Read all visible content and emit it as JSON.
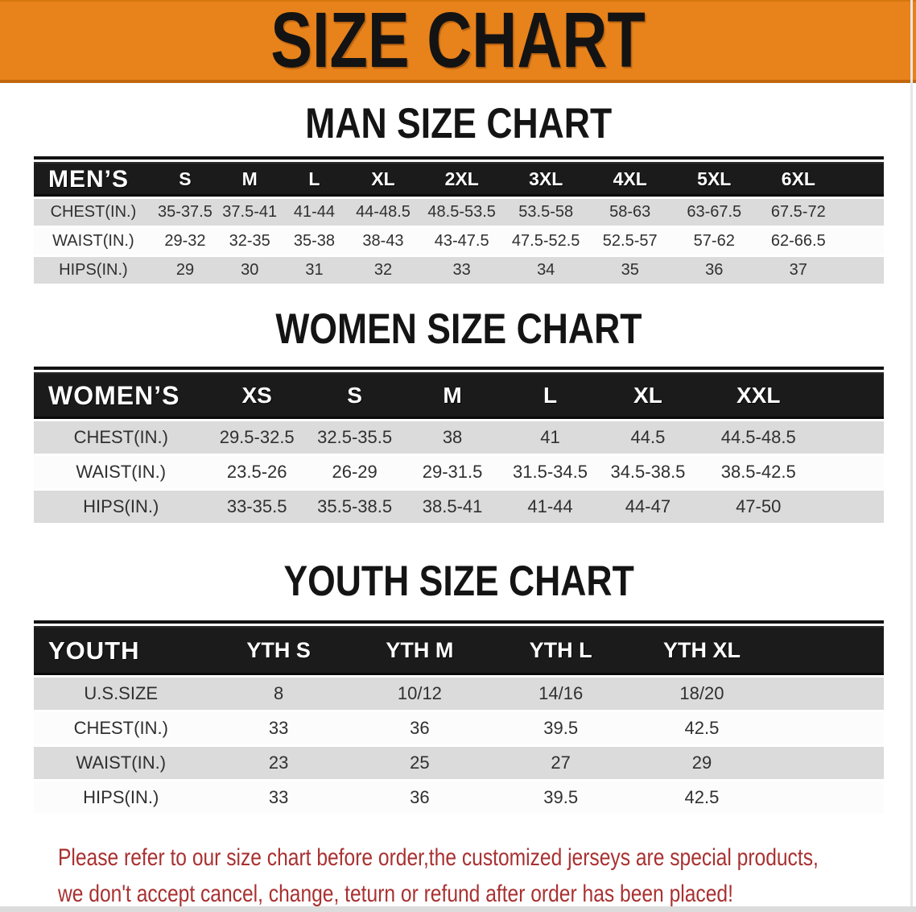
{
  "banner": {
    "title": "SIZE CHART"
  },
  "sections": [
    {
      "heading": "MAN SIZE CHART",
      "table": {
        "header": [
          "MEN’S",
          "S",
          "M",
          "L",
          "XL",
          "2XL",
          "3XL",
          "4XL",
          "5XL",
          "6XL"
        ],
        "rows": [
          {
            "label": "CHEST(IN.)",
            "values": [
              "35-37.5",
              "37.5-41",
              "41-44",
              "44-48.5",
              "48.5-53.5",
              "53.5-58",
              "58-63",
              "63-67.5",
              "67.5-72"
            ]
          },
          {
            "label": "WAIST(IN.)",
            "values": [
              "29-32",
              "32-35",
              "35-38",
              "38-43",
              "43-47.5",
              "47.5-52.5",
              "52.5-57",
              "57-62",
              "62-66.5"
            ]
          },
          {
            "label": "HIPS(IN.)",
            "values": [
              "29",
              "30",
              "31",
              "32",
              "33",
              "34",
              "35",
              "36",
              "37"
            ]
          }
        ]
      }
    },
    {
      "heading": "WOMEN SIZE CHART",
      "table": {
        "header": [
          "WOMEN’S",
          "XS",
          "S",
          "M",
          "L",
          "XL",
          "XXL"
        ],
        "rows": [
          {
            "label": "CHEST(IN.)",
            "values": [
              "29.5-32.5",
              "32.5-35.5",
              "38",
              "41",
              "44.5",
              "44.5-48.5"
            ]
          },
          {
            "label": "WAIST(IN.)",
            "values": [
              "23.5-26",
              "26-29",
              "29-31.5",
              "31.5-34.5",
              "34.5-38.5",
              "38.5-42.5"
            ]
          },
          {
            "label": "HIPS(IN.)",
            "values": [
              "33-35.5",
              "35.5-38.5",
              "38.5-41",
              "41-44",
              "44-47",
              "47-50"
            ]
          }
        ]
      }
    },
    {
      "heading": "YOUTH SIZE CHART",
      "table": {
        "header": [
          "YOUTH",
          "YTH S",
          "YTH M",
          "YTH L",
          "YTH XL"
        ],
        "rows": [
          {
            "label": "U.S.SIZE",
            "values": [
              "8",
              "10/12",
              "14/16",
              "18/20"
            ]
          },
          {
            "label": "CHEST(IN.)",
            "values": [
              "33",
              "36",
              "39.5",
              "42.5"
            ]
          },
          {
            "label": "WAIST(IN.)",
            "values": [
              "23",
              "25",
              "27",
              "29"
            ]
          },
          {
            "label": "HIPS(IN.)",
            "values": [
              "33",
              "36",
              "39.5",
              "42.5"
            ]
          }
        ]
      }
    }
  ],
  "disclaimer": {
    "line1": "Please refer to our size chart before order,the customized jerseys are special products,",
    "line2": "we don't accept cancel, change, teturn or refund after order has been placed!"
  },
  "colors": {
    "banner_bg": "#E8821B",
    "header_bg": "#1B1B1B",
    "row_gray": "#DBDBDB",
    "row_white": "#FCFCFC",
    "disclaimer_red": "#A93131"
  }
}
